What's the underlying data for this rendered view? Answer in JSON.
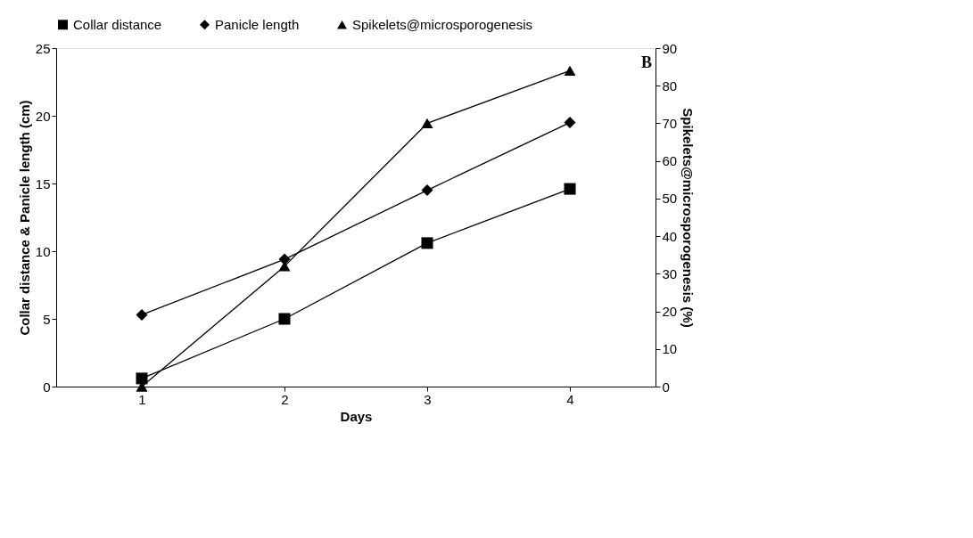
{
  "chart_data": {
    "type": "line",
    "xlabel": "Days",
    "ylabel": "Collar distance & Panicle length  (cm)",
    "y2label": "Spikelets@microsporogenesis (%)",
    "categories": [
      "1",
      "2",
      "3",
      "4"
    ],
    "series": [
      {
        "name": "Collar distance",
        "color": "#000000",
        "marker": "square",
        "values": [
          0.6,
          5.0,
          10.6,
          14.6
        ]
      },
      {
        "name": "Panicle length",
        "color": "#000000",
        "marker": "diamond",
        "values": [
          5.3,
          9.4,
          14.5,
          19.5
        ]
      },
      {
        "name": "Spikelets@microsporogenesis",
        "color": "#000000",
        "marker": "triangle",
        "axis": "y2",
        "values": [
          0,
          32,
          70,
          84
        ]
      }
    ],
    "ylim": [
      0,
      25
    ],
    "yticks": [
      0,
      5,
      10,
      15,
      20,
      25
    ],
    "y2lim": [
      0,
      90
    ],
    "y2ticks": [
      0,
      10,
      20,
      30,
      40,
      50,
      60,
      70,
      80,
      90
    ],
    "annotations": [
      "B"
    ],
    "grid": false,
    "legend": "top"
  }
}
